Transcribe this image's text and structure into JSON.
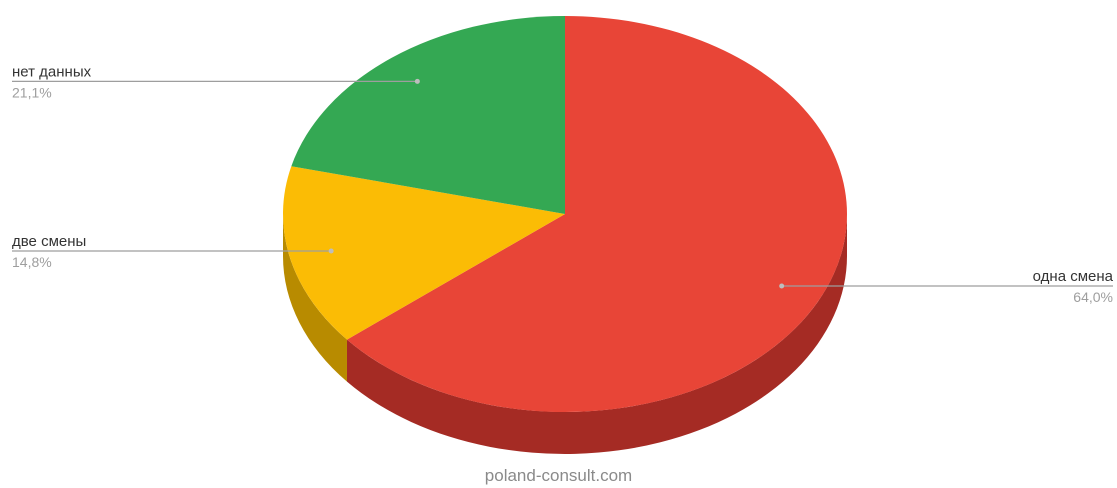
{
  "chart_data": {
    "type": "pie",
    "style": "3d",
    "slices": [
      {
        "label": "одна смена",
        "value": 64.0,
        "value_label": "64,0%",
        "color": "#e84537",
        "side_color": "#a52b24",
        "label_side": "right"
      },
      {
        "label": "две смены",
        "value": 14.8,
        "value_label": "14,8%",
        "color": "#fbbc05",
        "side_color": "#b88b00",
        "label_side": "left"
      },
      {
        "label": "нет данных",
        "value": 21.1,
        "value_label": "21,1%",
        "color": "#34a853",
        "side_color": "#23753a",
        "label_side": "left"
      }
    ],
    "legend": "none"
  },
  "watermark": "poland-consult.com"
}
